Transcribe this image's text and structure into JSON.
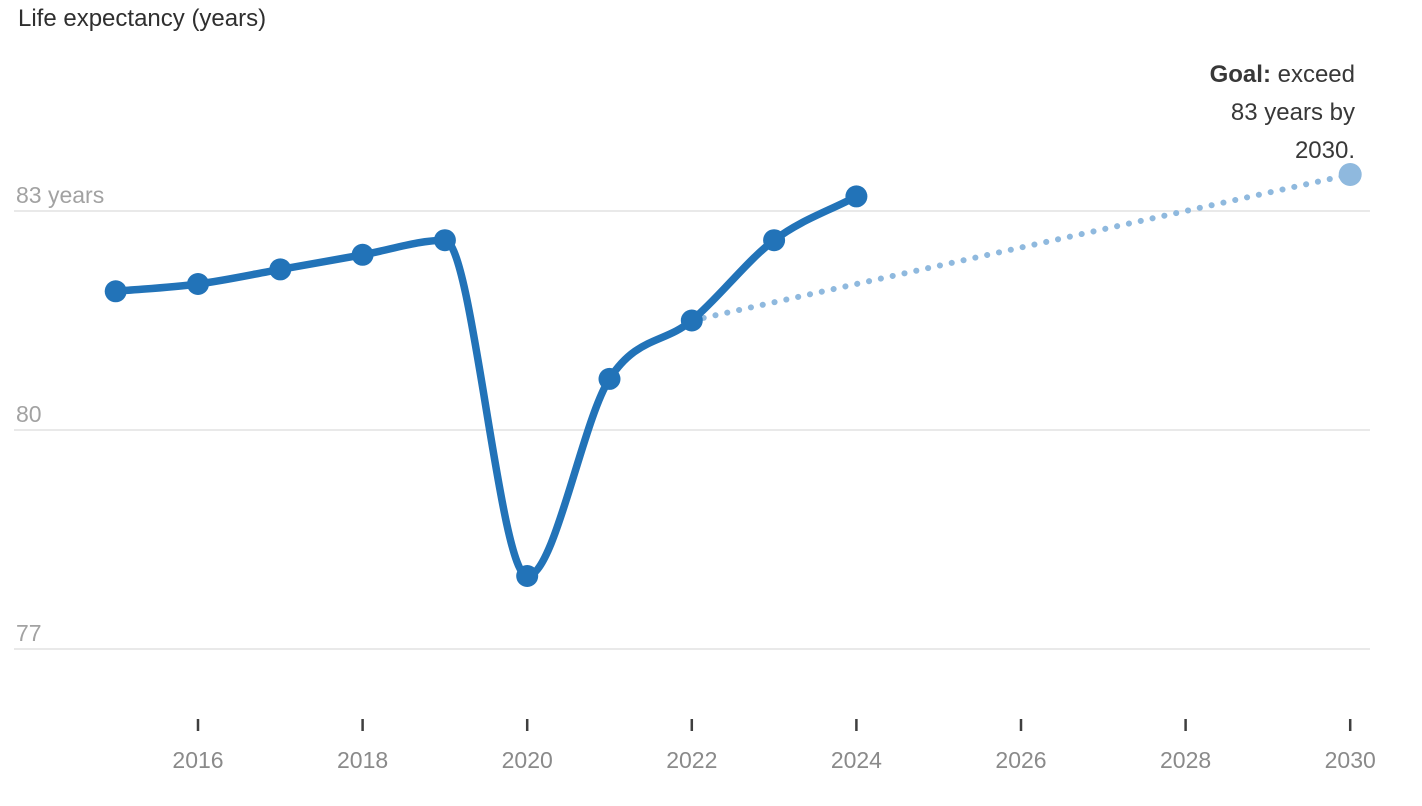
{
  "chart_data": {
    "type": "line",
    "title": "Life expectancy (years)",
    "x_axis": {
      "ticks": [
        2016,
        2018,
        2020,
        2022,
        2024,
        2026,
        2028,
        2030
      ],
      "range": [
        2015,
        2030.6
      ]
    },
    "y_axis": {
      "ticks": [
        {
          "value": 83,
          "label": "83 years"
        },
        {
          "value": 80,
          "label": "80"
        },
        {
          "value": 77,
          "label": "77"
        }
      ],
      "range": [
        76.2,
        84.3
      ],
      "grid": true
    },
    "series": [
      {
        "name": "life-expectancy-observed",
        "style": "solid-line-with-points",
        "color": "#2273b8",
        "x": [
          2015,
          2016,
          2017,
          2018,
          2019,
          2020,
          2021,
          2022,
          2023,
          2024
        ],
        "values": [
          81.9,
          82.0,
          82.2,
          82.4,
          82.6,
          78.0,
          80.7,
          81.5,
          82.6,
          83.2
        ]
      },
      {
        "name": "goal-projection",
        "style": "dotted-line-with-end-point",
        "color": "#8fb9de",
        "x": [
          2022,
          2030
        ],
        "values": [
          81.5,
          83.5
        ]
      }
    ],
    "annotation": {
      "bold": "Goal:",
      "line1_rest": " exceed",
      "line2": "83 years by",
      "line3": "2030."
    },
    "colors": {
      "gridline": "#e9e9e9",
      "tick": "#3f3f3f",
      "x_label": "#8a8a8a",
      "y_label": "#a2a2a2",
      "title": "#2f2f2f",
      "annotation": "#383838"
    }
  }
}
